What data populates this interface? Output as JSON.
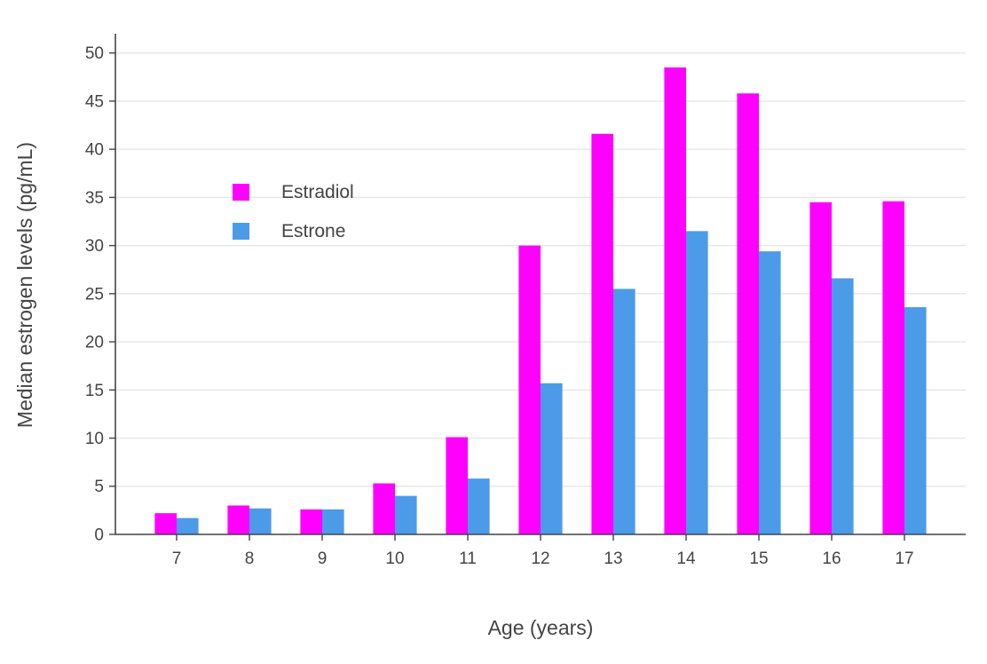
{
  "chart_data": {
    "type": "bar",
    "categories": [
      7,
      8,
      9,
      10,
      11,
      12,
      13,
      14,
      15,
      16,
      17
    ],
    "series": [
      {
        "name": "Estradiol",
        "color": "#FF00FF",
        "values": [
          2.2,
          3.0,
          2.6,
          5.3,
          10.1,
          30.0,
          41.6,
          48.5,
          45.8,
          34.5,
          34.6
        ]
      },
      {
        "name": "Estrone",
        "color": "#4C9BE8",
        "values": [
          1.7,
          2.7,
          2.6,
          4.0,
          5.8,
          15.7,
          25.5,
          31.5,
          29.4,
          26.6,
          23.6
        ]
      }
    ],
    "title": "",
    "xlabel": "Age (years)",
    "ylabel": "Median estrogen levels (pg/mL)",
    "ylim": [
      0,
      50
    ],
    "ytick_step": 5,
    "grid": true,
    "legend_position": "inside-top-left"
  }
}
